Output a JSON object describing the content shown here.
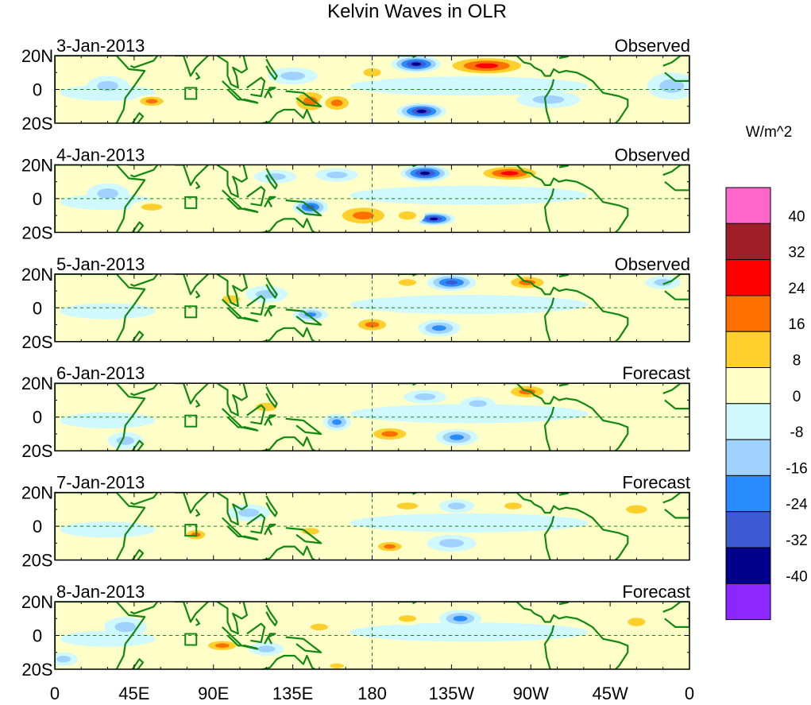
{
  "chart_data": {
    "type": "heatmap",
    "title": "Kelvin Waves in OLR",
    "colorbar_title": "W/m^2",
    "lat_ticks": [
      "20N",
      "0",
      "20S"
    ],
    "lon_ticks": [
      {
        "label": "0",
        "lon": 0
      },
      {
        "label": "45E",
        "lon": 45
      },
      {
        "label": "90E",
        "lon": 90
      },
      {
        "label": "135E",
        "lon": 135
      },
      {
        "label": "180",
        "lon": 180
      },
      {
        "label": "135W",
        "lon": 225
      },
      {
        "label": "90W",
        "lon": 270
      },
      {
        "label": "45W",
        "lon": 315
      },
      {
        "label": "0",
        "lon": 360
      }
    ],
    "lon_range": [
      0,
      360
    ],
    "lat_range": [
      -20,
      20
    ],
    "levels": [
      -40,
      -32,
      -24,
      -16,
      -8,
      0,
      8,
      16,
      24,
      32,
      40
    ],
    "level_labels": [
      "40",
      "32",
      "24",
      "16",
      "8",
      "0",
      "-8",
      "-16",
      "-24",
      "-32",
      "-40"
    ],
    "colors_top_to_bottom": [
      "#ff66cc",
      "#a01e28",
      "#ff0000",
      "#ff7000",
      "#ffd02c",
      "#ffffc8",
      "#d0f8ff",
      "#a0d2ff",
      "#288cff",
      "#3c5ad2",
      "#00008c",
      "#8c28ff"
    ],
    "panels": [
      {
        "date": "3-Jan-2013",
        "status": "Observed",
        "anomalies": [
          {
            "lon": 205,
            "lat": 15,
            "value": -38,
            "rx": 14,
            "ry": 5
          },
          {
            "lon": 208,
            "lat": -13,
            "value": -38,
            "rx": 14,
            "ry": 5
          },
          {
            "lon": 245,
            "lat": 14,
            "value": 26,
            "rx": 26,
            "ry": 6
          },
          {
            "lon": 145,
            "lat": -7,
            "value": 22,
            "rx": 12,
            "ry": 8
          },
          {
            "lon": 160,
            "lat": -8,
            "value": 20,
            "rx": 10,
            "ry": 6
          },
          {
            "lon": 180,
            "lat": 10,
            "value": 14,
            "rx": 10,
            "ry": 5
          },
          {
            "lon": 135,
            "lat": 8,
            "value": -14,
            "rx": 14,
            "ry": 5
          },
          {
            "lon": 55,
            "lat": -7,
            "value": 18,
            "rx": 10,
            "ry": 4
          },
          {
            "lon": 30,
            "lat": 2,
            "value": -10,
            "rx": 12,
            "ry": 6
          },
          {
            "lon": 280,
            "lat": -6,
            "value": -10,
            "rx": 18,
            "ry": 5
          },
          {
            "lon": 350,
            "lat": 2,
            "value": -10,
            "rx": 14,
            "ry": 8
          }
        ]
      },
      {
        "date": "4-Jan-2013",
        "status": "Observed",
        "anomalies": [
          {
            "lon": 210,
            "lat": 15,
            "value": -34,
            "rx": 14,
            "ry": 5
          },
          {
            "lon": 215,
            "lat": -12,
            "value": -34,
            "rx": 12,
            "ry": 4
          },
          {
            "lon": 258,
            "lat": 15,
            "value": 26,
            "rx": 20,
            "ry": 5
          },
          {
            "lon": 175,
            "lat": -10,
            "value": 22,
            "rx": 18,
            "ry": 7
          },
          {
            "lon": 200,
            "lat": -10,
            "value": 14,
            "rx": 10,
            "ry": 5
          },
          {
            "lon": 145,
            "lat": -5,
            "value": -28,
            "rx": 10,
            "ry": 5
          },
          {
            "lon": 125,
            "lat": 13,
            "value": -14,
            "rx": 12,
            "ry": 4
          },
          {
            "lon": 55,
            "lat": -5,
            "value": 14,
            "rx": 12,
            "ry": 4
          },
          {
            "lon": 160,
            "lat": 14,
            "value": -12,
            "rx": 12,
            "ry": 4
          },
          {
            "lon": 30,
            "lat": 3,
            "value": -10,
            "rx": 12,
            "ry": 6
          }
        ]
      },
      {
        "date": "5-Jan-2013",
        "status": "Observed",
        "anomalies": [
          {
            "lon": 225,
            "lat": 15,
            "value": -26,
            "rx": 14,
            "ry": 5
          },
          {
            "lon": 218,
            "lat": -12,
            "value": -22,
            "rx": 12,
            "ry": 5
          },
          {
            "lon": 268,
            "lat": 15,
            "value": 24,
            "rx": 14,
            "ry": 5
          },
          {
            "lon": 180,
            "lat": -10,
            "value": 20,
            "rx": 12,
            "ry": 5
          },
          {
            "lon": 145,
            "lat": -4,
            "value": -20,
            "rx": 10,
            "ry": 4
          },
          {
            "lon": 200,
            "lat": 15,
            "value": 14,
            "rx": 10,
            "ry": 4
          },
          {
            "lon": 120,
            "lat": 8,
            "value": -12,
            "rx": 12,
            "ry": 5
          },
          {
            "lon": 100,
            "lat": 5,
            "value": 12,
            "rx": 10,
            "ry": 5
          },
          {
            "lon": 345,
            "lat": 15,
            "value": -14,
            "rx": 10,
            "ry": 4
          }
        ]
      },
      {
        "date": "6-Jan-2013",
        "status": "Forecast",
        "anomalies": [
          {
            "lon": 228,
            "lat": -12,
            "value": -22,
            "rx": 12,
            "ry": 5
          },
          {
            "lon": 268,
            "lat": 15,
            "value": 22,
            "rx": 14,
            "ry": 5
          },
          {
            "lon": 190,
            "lat": -10,
            "value": 18,
            "rx": 14,
            "ry": 5
          },
          {
            "lon": 160,
            "lat": -3,
            "value": -20,
            "rx": 8,
            "ry": 5
          },
          {
            "lon": 210,
            "lat": 12,
            "value": -10,
            "rx": 12,
            "ry": 4
          },
          {
            "lon": 120,
            "lat": 6,
            "value": 10,
            "rx": 12,
            "ry": 5
          },
          {
            "lon": 240,
            "lat": 8,
            "value": -10,
            "rx": 10,
            "ry": 4
          },
          {
            "lon": 40,
            "lat": -14,
            "value": -14,
            "rx": 10,
            "ry": 5
          }
        ]
      },
      {
        "date": "7-Jan-2013",
        "status": "Forecast",
        "anomalies": [
          {
            "lon": 145,
            "lat": -3,
            "value": 16,
            "rx": 10,
            "ry": 4
          },
          {
            "lon": 190,
            "lat": -12,
            "value": 20,
            "rx": 10,
            "ry": 4
          },
          {
            "lon": 225,
            "lat": -10,
            "value": -14,
            "rx": 14,
            "ry": 5
          },
          {
            "lon": 200,
            "lat": 12,
            "value": 12,
            "rx": 12,
            "ry": 4
          },
          {
            "lon": 228,
            "lat": 12,
            "value": -14,
            "rx": 10,
            "ry": 4
          },
          {
            "lon": 80,
            "lat": -5,
            "value": 20,
            "rx": 8,
            "ry": 4
          },
          {
            "lon": 330,
            "lat": 10,
            "value": 12,
            "rx": 12,
            "ry": 5
          },
          {
            "lon": 110,
            "lat": 8,
            "value": -10,
            "rx": 12,
            "ry": 5
          },
          {
            "lon": 260,
            "lat": 12,
            "value": 10,
            "rx": 10,
            "ry": 4
          }
        ]
      },
      {
        "date": "8-Jan-2013",
        "status": "Forecast",
        "anomalies": [
          {
            "lon": 230,
            "lat": 10,
            "value": -20,
            "rx": 12,
            "ry": 5
          },
          {
            "lon": 95,
            "lat": -6,
            "value": 20,
            "rx": 12,
            "ry": 4
          },
          {
            "lon": 150,
            "lat": 5,
            "value": 14,
            "rx": 10,
            "ry": 4
          },
          {
            "lon": 160,
            "lat": -18,
            "value": 16,
            "rx": 8,
            "ry": 3
          },
          {
            "lon": 40,
            "lat": 5,
            "value": -12,
            "rx": 12,
            "ry": 6
          },
          {
            "lon": 200,
            "lat": 10,
            "value": 12,
            "rx": 10,
            "ry": 4
          },
          {
            "lon": 330,
            "lat": 8,
            "value": 12,
            "rx": 10,
            "ry": 5
          },
          {
            "lon": 120,
            "lat": -8,
            "value": -10,
            "rx": 10,
            "ry": 4
          },
          {
            "lon": 5,
            "lat": -14,
            "value": -10,
            "rx": 8,
            "ry": 4
          }
        ]
      }
    ]
  }
}
